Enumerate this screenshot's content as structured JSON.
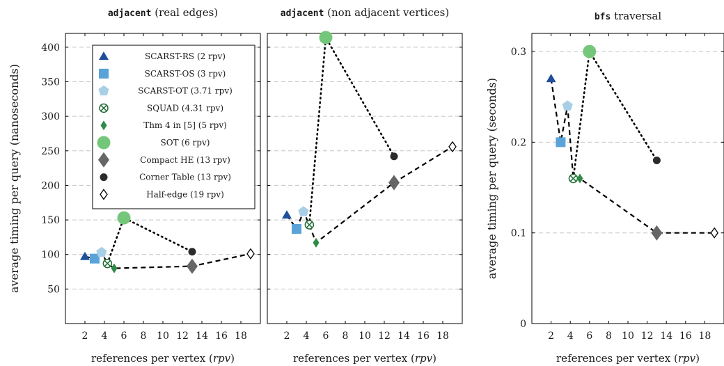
{
  "chart_data": [
    {
      "type": "scatter",
      "title_code": "adjacent",
      "title_rest": " (real edges)",
      "xlabel_prefix": "references per vertex (",
      "xlabel_var": "rpv",
      "xlabel_suffix": ")",
      "ylabel": "average timing per query (nanoseconds)",
      "xlim": [
        0,
        20
      ],
      "ylim": [
        0,
        420
      ],
      "xticks": [
        2,
        4,
        6,
        8,
        10,
        12,
        14,
        16,
        18
      ],
      "yticks": [
        50,
        100,
        150,
        200,
        250,
        300,
        350,
        400
      ],
      "grid": "horizontal-dashed",
      "points": [
        {
          "series": "SCARST-RS (2 rpv)",
          "x": 2,
          "y": 97
        },
        {
          "series": "SCARST-OS (3 rpv)",
          "x": 3,
          "y": 94
        },
        {
          "series": "SCARST-OT (3.71 rpv)",
          "x": 3.71,
          "y": 103
        },
        {
          "series": "SQUAD (4.31 rpv)",
          "x": 4.31,
          "y": 87
        },
        {
          "series": "Thm 4 in [5] (5 rpv)",
          "x": 5,
          "y": 80
        },
        {
          "series": "SOT (6 rpv)",
          "x": 6,
          "y": 153
        },
        {
          "series": "Compact HE (13 rpv)",
          "x": 13,
          "y": 83
        },
        {
          "series": "Corner Table (13 rpv)",
          "x": 13,
          "y": 104
        },
        {
          "series": "Half-edge (19 rpv)",
          "x": 19,
          "y": 101
        }
      ],
      "dashed_line": [
        [
          2,
          97
        ],
        [
          3,
          94
        ],
        [
          3.71,
          103
        ],
        [
          4.31,
          87
        ],
        [
          5,
          80
        ],
        [
          13,
          83
        ],
        [
          19,
          101
        ]
      ],
      "dotted_line": [
        [
          4.31,
          87
        ],
        [
          6,
          153
        ],
        [
          13,
          104
        ]
      ]
    },
    {
      "type": "scatter",
      "title_code": "adjacent",
      "title_rest": " (non adjacent vertices)",
      "xlabel_prefix": "references per vertex (",
      "xlabel_var": "rpv",
      "xlabel_suffix": ")",
      "ylabel": "",
      "xlim": [
        0,
        20
      ],
      "ylim": [
        0,
        420
      ],
      "xticks": [
        2,
        4,
        6,
        8,
        10,
        12,
        14,
        16,
        18
      ],
      "yticks": [
        50,
        100,
        150,
        200,
        250,
        300,
        350,
        400
      ],
      "grid": "horizontal-dashed",
      "points": [
        {
          "series": "SCARST-RS (2 rpv)",
          "x": 2,
          "y": 157
        },
        {
          "series": "SCARST-OS (3 rpv)",
          "x": 3,
          "y": 137
        },
        {
          "series": "SCARST-OT (3.71 rpv)",
          "x": 3.71,
          "y": 162
        },
        {
          "series": "SQUAD (4.31 rpv)",
          "x": 4.31,
          "y": 143
        },
        {
          "series": "Thm 4 in [5] (5 rpv)",
          "x": 5,
          "y": 117
        },
        {
          "series": "SOT (6 rpv)",
          "x": 6,
          "y": 414
        },
        {
          "series": "Compact HE (13 rpv)",
          "x": 13,
          "y": 204
        },
        {
          "series": "Corner Table (13 rpv)",
          "x": 13,
          "y": 242
        },
        {
          "series": "Half-edge (19 rpv)",
          "x": 19,
          "y": 256
        }
      ],
      "dashed_line": [
        [
          2,
          157
        ],
        [
          3,
          137
        ],
        [
          3.71,
          162
        ],
        [
          4.31,
          143
        ],
        [
          5,
          117
        ],
        [
          13,
          204
        ],
        [
          19,
          256
        ]
      ],
      "dotted_line": [
        [
          4.31,
          143
        ],
        [
          6,
          414
        ],
        [
          13,
          242
        ]
      ]
    },
    {
      "type": "scatter",
      "title_code": "bfs",
      "title_rest": " traversal",
      "xlabel_prefix": "references per vertex (",
      "xlabel_var": "rpv",
      "xlabel_suffix": ")",
      "ylabel": "average timing per query (seconds)",
      "xlim": [
        0,
        20
      ],
      "ylim": [
        0,
        0.32
      ],
      "xticks": [
        2,
        4,
        6,
        8,
        10,
        12,
        14,
        16,
        18
      ],
      "yticks": [
        0,
        0.1,
        0.2,
        0.3
      ],
      "grid": "horizontal-dashed",
      "points": [
        {
          "series": "SCARST-RS (2 rpv)",
          "x": 2,
          "y": 0.27
        },
        {
          "series": "SCARST-OS (3 rpv)",
          "x": 3,
          "y": 0.2
        },
        {
          "series": "SCARST-OT (3.71 rpv)",
          "x": 3.71,
          "y": 0.24
        },
        {
          "series": "SQUAD (4.31 rpv)",
          "x": 4.31,
          "y": 0.16
        },
        {
          "series": "Thm 4 in [5] (5 rpv)",
          "x": 5,
          "y": 0.16
        },
        {
          "series": "SOT (6 rpv)",
          "x": 6,
          "y": 0.3
        },
        {
          "series": "Compact HE (13 rpv)",
          "x": 13,
          "y": 0.1
        },
        {
          "series": "Corner Table (13 rpv)",
          "x": 13,
          "y": 0.18
        },
        {
          "series": "Half-edge (19 rpv)",
          "x": 19,
          "y": 0.1
        }
      ],
      "dashed_line": [
        [
          2,
          0.27
        ],
        [
          3,
          0.2
        ],
        [
          3.71,
          0.24
        ],
        [
          4.31,
          0.16
        ],
        [
          5,
          0.16
        ],
        [
          13,
          0.1
        ],
        [
          19,
          0.1
        ]
      ],
      "dotted_line": [
        [
          4.31,
          0.16
        ],
        [
          6,
          0.3
        ],
        [
          13,
          0.18
        ]
      ]
    }
  ],
  "legend": {
    "placement": "top-left of first panel",
    "entries": [
      {
        "label": "SCARST-RS (2 rpv)",
        "marker": "triangle",
        "color": "#1f4e9c"
      },
      {
        "label": "SCARST-OS (3 rpv)",
        "marker": "square",
        "color": "#5aa3d8"
      },
      {
        "label": "SCARST-OT (3.71 rpv)",
        "marker": "pentagon",
        "color": "#a9cfe7"
      },
      {
        "label": "SQUAD (4.31 rpv)",
        "marker": "otimes",
        "color": "#1e6b35"
      },
      {
        "label": "Thm 4 in [5] (5 rpv)",
        "marker": "small-diamond",
        "color": "#2e8b47"
      },
      {
        "label": "SOT (6 rpv)",
        "marker": "big-circle",
        "color": "#74c77a"
      },
      {
        "label": "Compact HE (13 rpv)",
        "marker": "big-diamond",
        "color": "#666666"
      },
      {
        "label": "Corner Table (13 rpv)",
        "marker": "small-circle",
        "color": "#2b2b2b"
      },
      {
        "label": "Half-edge (19 rpv)",
        "marker": "open-diamond",
        "color": "#000000"
      }
    ]
  }
}
